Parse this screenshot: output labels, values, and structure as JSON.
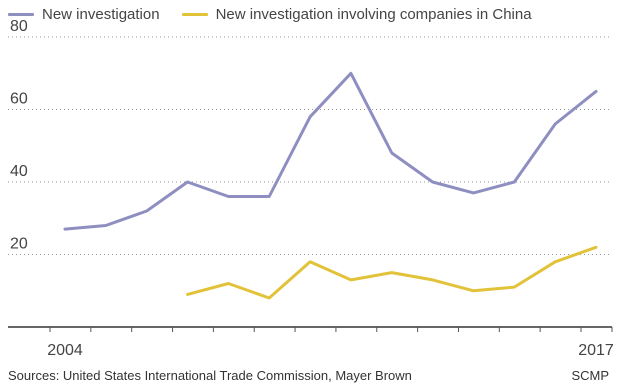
{
  "chart_data": {
    "type": "line",
    "x": [
      2004,
      2005,
      2006,
      2007,
      2008,
      2009,
      2010,
      2011,
      2012,
      2013,
      2014,
      2015,
      2016,
      2017
    ],
    "series": [
      {
        "name": "New investigation",
        "color": "#8e8fc0",
        "values": [
          27,
          28,
          32,
          40,
          36,
          36,
          58,
          70,
          48,
          40,
          37,
          40,
          56,
          65
        ]
      },
      {
        "name": "New investigation involving companies in China",
        "color": "#e2c238",
        "values": [
          null,
          null,
          null,
          9,
          12,
          8,
          18,
          13,
          15,
          13,
          10,
          11,
          18,
          22
        ]
      }
    ],
    "yticks": [
      20,
      40,
      60,
      80
    ],
    "ylim": [
      0,
      80
    ],
    "xtick_labels": [
      {
        "x": 2004,
        "label": "2004"
      },
      {
        "x": 2017,
        "label": "2017"
      }
    ],
    "grid": "dotted horizontal",
    "legend": "top"
  },
  "footer": {
    "source": "Sources: United States International Trade Commission, Mayer Brown",
    "credit": "SCMP"
  }
}
